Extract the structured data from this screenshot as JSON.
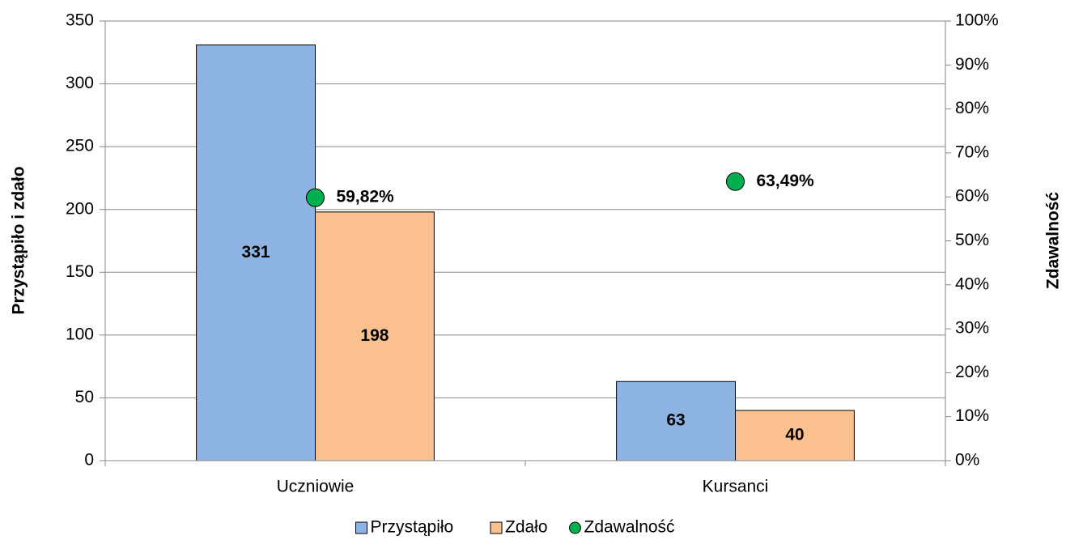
{
  "chart_data": {
    "type": "bar",
    "categories": [
      "Uczniowie",
      "Kursanci"
    ],
    "series": [
      {
        "name": "Przystąpiło",
        "color": "#8db3e2",
        "values": [
          331,
          63
        ]
      },
      {
        "name": "Zdało",
        "color": "#fac08f",
        "values": [
          198,
          40
        ]
      },
      {
        "name": "Zdawalność",
        "color": "#00b050",
        "type": "scatter",
        "axis": "y2",
        "values": [
          59.82,
          63.49
        ],
        "value_labels": [
          "59,82%",
          "63,49%"
        ]
      }
    ],
    "ylabel": "Przystąpiło i zdało",
    "y2label": "Zdawalność",
    "ylim": [
      0,
      350
    ],
    "yticks": [
      0,
      50,
      100,
      150,
      200,
      250,
      300,
      350
    ],
    "y2lim": [
      0,
      100
    ],
    "y2ticks": [
      {
        "value": 0,
        "label": "0%"
      },
      {
        "value": 10,
        "label": "10%"
      },
      {
        "value": 20,
        "label": "20%"
      },
      {
        "value": 30,
        "label": "30%"
      },
      {
        "value": 40,
        "label": "40%"
      },
      {
        "value": 50,
        "label": "50%"
      },
      {
        "value": 60,
        "label": "60%"
      },
      {
        "value": 70,
        "label": "70%"
      },
      {
        "value": 80,
        "label": "80%"
      },
      {
        "value": 90,
        "label": "90%"
      },
      {
        "value": 100,
        "label": "100%"
      }
    ],
    "grid": true,
    "legend": "bottom"
  }
}
